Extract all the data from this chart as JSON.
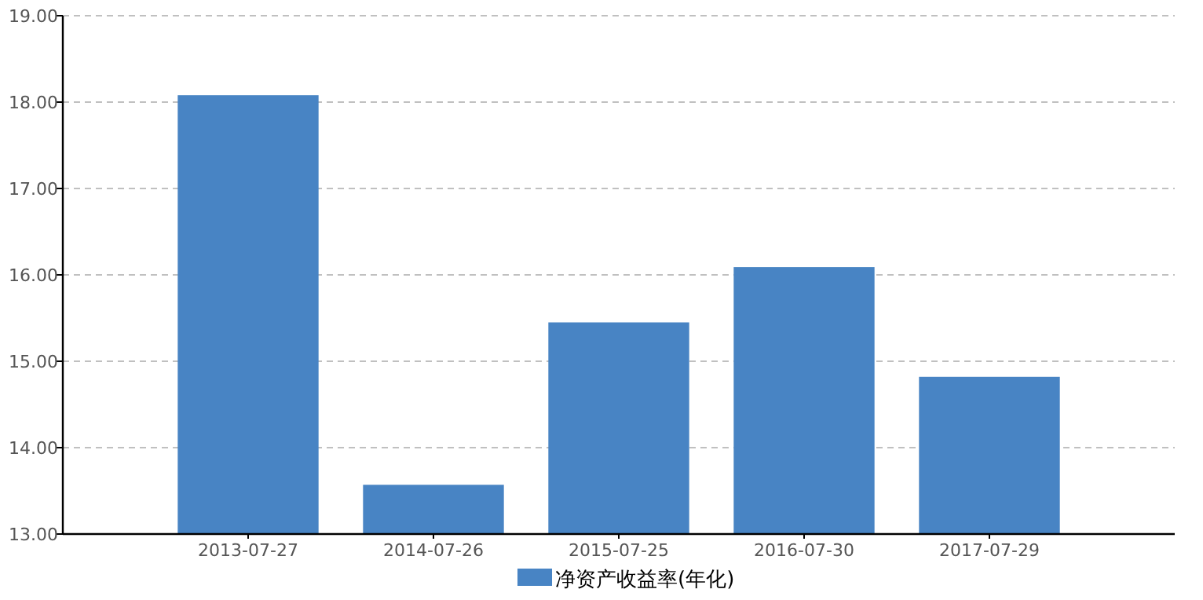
{
  "chart_data": {
    "type": "bar",
    "categories": [
      "2013-07-27",
      "2014-07-26",
      "2015-07-25",
      "2016-07-30",
      "2017-07-29"
    ],
    "series": [
      {
        "name": "净资产收益率(年化)",
        "color": "#4884c4",
        "values": [
          18.08,
          13.57,
          15.45,
          16.09,
          14.82
        ]
      }
    ],
    "ylim": [
      13,
      19
    ],
    "yticks": [
      {
        "value": 13,
        "label": "13.00"
      },
      {
        "value": 14,
        "label": "14.00"
      },
      {
        "value": 15,
        "label": "15.00"
      },
      {
        "value": 16,
        "label": "16.00"
      },
      {
        "value": 17,
        "label": "17.00"
      },
      {
        "value": 18,
        "label": "18.00"
      },
      {
        "value": 19,
        "label": "19.00"
      }
    ],
    "grid": "y",
    "legend": "bottom"
  }
}
